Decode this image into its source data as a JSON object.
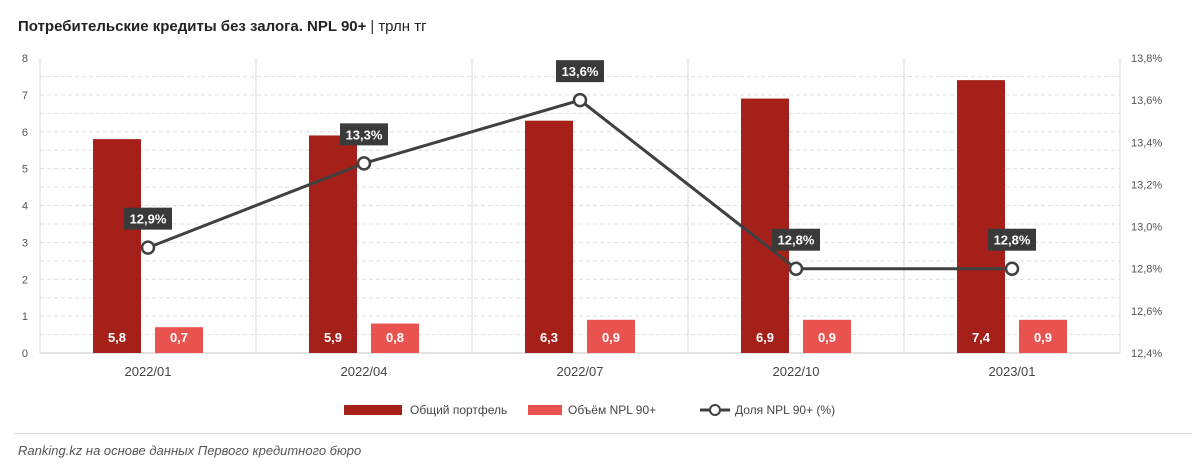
{
  "title": {
    "main": "Потребительские кредиты без залога. NPL 90+",
    "separator": "|",
    "unit": "трлн тг"
  },
  "source": "Ranking.kz на основе данных Первого кредитного бюро",
  "colors": {
    "portfolio": "#a6201a",
    "npl_volume": "#e8534f",
    "npl_share_line": "#404040",
    "label_box": "#3a3a3a"
  },
  "chart_data": {
    "type": "bar",
    "categories": [
      "2022/01",
      "2022/04",
      "2022/07",
      "2022/10",
      "2023/01"
    ],
    "series": [
      {
        "name": "Общий портфель",
        "type": "bar",
        "axis": "left",
        "values": [
          5.8,
          5.9,
          6.3,
          6.9,
          7.4
        ],
        "labels": [
          "5,8",
          "5,9",
          "6,3",
          "6,9",
          "7,4"
        ]
      },
      {
        "name": "Объём NPL 90+",
        "type": "bar",
        "axis": "left",
        "values": [
          0.7,
          0.8,
          0.9,
          0.9,
          0.9
        ],
        "labels": [
          "0,7",
          "0,8",
          "0,9",
          "0,9",
          "0,9"
        ]
      },
      {
        "name": "Доля NPL 90+ (%)",
        "type": "line",
        "axis": "right",
        "values": [
          12.9,
          13.3,
          13.6,
          12.8,
          12.8
        ],
        "labels": [
          "12,9%",
          "13,3%",
          "13,6%",
          "12,8%",
          "12,8%"
        ]
      }
    ],
    "y_left": {
      "min": 0,
      "max": 8,
      "ticks": [
        "0",
        "1",
        "2",
        "3",
        "4",
        "5",
        "6",
        "7",
        "8"
      ]
    },
    "y_right": {
      "min": 12.4,
      "max": 13.8,
      "ticks": [
        "12,4%",
        "12,6%",
        "12,8%",
        "13,0%",
        "13,2%",
        "13,4%",
        "13,6%",
        "13,8%"
      ]
    },
    "legend_position": "bottom",
    "grid": true
  }
}
